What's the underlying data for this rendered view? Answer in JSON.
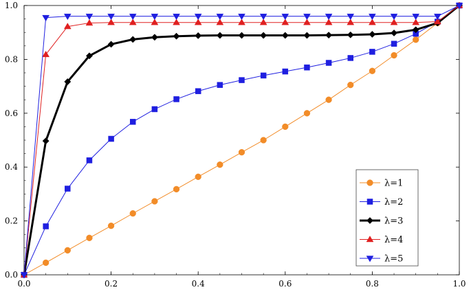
{
  "chart_data": {
    "type": "line",
    "title": "",
    "xlabel": "",
    "ylabel": "",
    "xlim": [
      0,
      1
    ],
    "ylim": [
      0,
      1
    ],
    "xticks": [
      "0.0",
      "0.2",
      "0.4",
      "0.6",
      "0.8",
      "1.0"
    ],
    "yticks": [
      "0.0",
      "0.2",
      "0.4",
      "0.6",
      "0.8",
      "1.0"
    ],
    "grid": false,
    "legend_position": "bottom-right",
    "x": [
      0.0,
      0.05,
      0.1,
      0.15,
      0.2,
      0.25,
      0.3,
      0.35,
      0.4,
      0.45,
      0.5,
      0.55,
      0.6,
      0.65,
      0.7,
      0.75,
      0.8,
      0.85,
      0.9,
      0.95,
      1.0
    ],
    "series": [
      {
        "name": "λ=1",
        "color": "#f28c28",
        "marker": "circle",
        "line_width": 1,
        "values": [
          0.0,
          0.045,
          0.091,
          0.137,
          0.182,
          0.228,
          0.273,
          0.318,
          0.364,
          0.409,
          0.455,
          0.5,
          0.55,
          0.6,
          0.65,
          0.705,
          0.757,
          0.815,
          0.873,
          0.935,
          1.0
        ]
      },
      {
        "name": "λ=2",
        "color": "#1f1fe0",
        "marker": "square",
        "line_width": 1,
        "values": [
          0.0,
          0.18,
          0.32,
          0.425,
          0.505,
          0.568,
          0.615,
          0.652,
          0.682,
          0.705,
          0.723,
          0.74,
          0.755,
          0.77,
          0.787,
          0.805,
          0.828,
          0.858,
          0.895,
          0.94,
          1.0
        ]
      },
      {
        "name": "λ=3",
        "color": "#000000",
        "marker": "diamond",
        "line_width": 3,
        "values": [
          0.0,
          0.497,
          0.717,
          0.813,
          0.856,
          0.874,
          0.882,
          0.886,
          0.888,
          0.889,
          0.889,
          0.889,
          0.889,
          0.889,
          0.89,
          0.891,
          0.893,
          0.898,
          0.91,
          0.935,
          1.0
        ]
      },
      {
        "name": "λ=4",
        "color": "#e02020",
        "marker": "triangle-up",
        "line_width": 1,
        "values": [
          0.0,
          0.818,
          0.922,
          0.935,
          0.937,
          0.937,
          0.937,
          0.937,
          0.937,
          0.937,
          0.937,
          0.937,
          0.937,
          0.937,
          0.937,
          0.937,
          0.937,
          0.937,
          0.937,
          0.94,
          1.0
        ]
      },
      {
        "name": "λ=5",
        "color": "#1f1fe0",
        "marker": "triangle-down",
        "line_width": 1,
        "values": [
          0.0,
          0.955,
          0.96,
          0.96,
          0.96,
          0.96,
          0.96,
          0.96,
          0.96,
          0.96,
          0.96,
          0.96,
          0.96,
          0.96,
          0.96,
          0.96,
          0.96,
          0.96,
          0.96,
          0.96,
          1.0
        ]
      }
    ]
  }
}
